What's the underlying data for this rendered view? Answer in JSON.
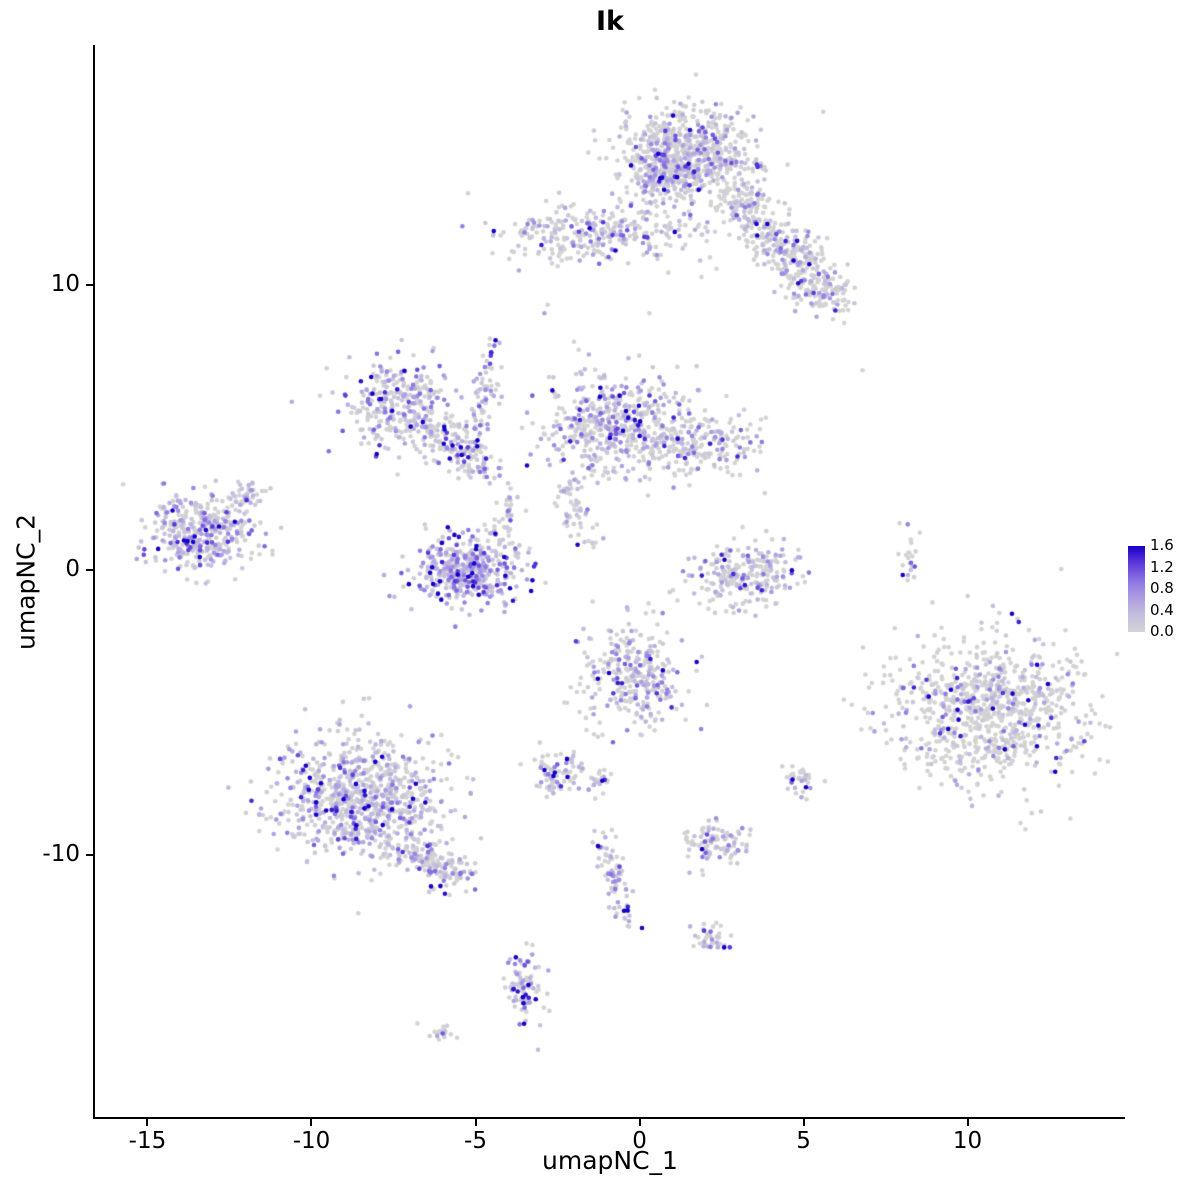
{
  "chart_data": {
    "type": "scatter",
    "title": "Ik",
    "xlabel": "umapNC_1",
    "ylabel": "umapNC_2",
    "x_ticks": [
      -15,
      -10,
      -5,
      0,
      5,
      10
    ],
    "y_ticks": [
      -10,
      0,
      10
    ],
    "xlim": [
      -16.6,
      14.8
    ],
    "ylim": [
      -19.2,
      18.4
    ],
    "grid": false,
    "legend": {
      "position": "right",
      "ticks": [
        "1.6",
        "1.2",
        "0.8",
        "0.4",
        "0.0"
      ],
      "vmin": 0.0,
      "vmax": 1.6
    },
    "colorscale": {
      "low": "#d3d3d3",
      "high": "#1400c8",
      "stops": [
        {
          "t": 0.0,
          "c": "#d3d3d3"
        },
        {
          "t": 0.2,
          "c": "#c4bede"
        },
        {
          "t": 0.4,
          "c": "#ab9de2"
        },
        {
          "t": 0.55,
          "c": "#9480e2"
        },
        {
          "t": 0.7,
          "c": "#7557de"
        },
        {
          "t": 0.85,
          "c": "#4e2bd8"
        },
        {
          "t": 1.0,
          "c": "#1400c8"
        }
      ]
    },
    "point_radius": 2.3,
    "seed": 42,
    "clusters": [
      {
        "name": "top-main",
        "cx": 1.5,
        "cy": 14.6,
        "sx": 1.05,
        "sy": 0.8,
        "n": 650,
        "f": 0.5,
        "m": 0.4
      },
      {
        "name": "top-left-lobe",
        "cx": 0.8,
        "cy": 13.9,
        "sx": 0.5,
        "sy": 0.55,
        "n": 150,
        "f": 0.5,
        "m": 0.4
      },
      {
        "name": "top-arm-upper",
        "cx": 2.8,
        "cy": 13.2,
        "ex": 4.0,
        "ey": 11.8,
        "sx": 0.45,
        "sy": 0.4,
        "n": 160,
        "f": 0.4,
        "m": 0.4
      },
      {
        "name": "top-arm-lower",
        "cx": 4.2,
        "cy": 11.6,
        "ex": 5.2,
        "ey": 10.1,
        "sx": 0.5,
        "sy": 0.45,
        "n": 200,
        "f": 0.45,
        "m": 0.45
      },
      {
        "name": "top-arm-tip",
        "cx": 5.7,
        "cy": 9.7,
        "sx": 0.45,
        "sy": 0.35,
        "n": 90,
        "f": 0.45,
        "m": 0.4
      },
      {
        "name": "upper-left-band",
        "cx": -1.6,
        "cy": 11.8,
        "sx": 1.25,
        "sy": 0.5,
        "n": 270,
        "f": 0.55,
        "m": 0.45
      },
      {
        "name": "upper-sparse",
        "cx": 0.9,
        "cy": 11.9,
        "sx": 0.9,
        "sy": 0.7,
        "n": 50,
        "f": 0.4,
        "m": 0.35
      },
      {
        "name": "wing-left",
        "cx": -7.2,
        "cy": 5.7,
        "sx": 0.95,
        "sy": 0.75,
        "n": 330,
        "f": 0.65,
        "m": 0.5
      },
      {
        "name": "wing-arm",
        "cx": -6.2,
        "cy": 4.9,
        "ex": -4.7,
        "ey": 3.5,
        "sx": 0.35,
        "sy": 0.3,
        "n": 130,
        "f": 0.6,
        "m": 0.5
      },
      {
        "name": "trail-upper",
        "cx": -4.5,
        "cy": 7.8,
        "ex": -5.0,
        "ey": 4.0,
        "sx": 0.18,
        "sy": 0.3,
        "n": 70,
        "f": 0.6,
        "m": 0.5
      },
      {
        "name": "center-main",
        "cx": -0.6,
        "cy": 5.1,
        "sx": 1.25,
        "sy": 0.85,
        "n": 520,
        "f": 0.6,
        "m": 0.5
      },
      {
        "name": "center-right-lobe",
        "cx": 1.9,
        "cy": 4.3,
        "sx": 0.8,
        "sy": 0.55,
        "n": 160,
        "f": 0.5,
        "m": 0.5
      },
      {
        "name": "center-trail-down",
        "cx": -2.3,
        "cy": 3.2,
        "ex": -1.6,
        "ey": 0.9,
        "sx": 0.25,
        "sy": 0.3,
        "n": 60,
        "f": 0.6,
        "m": 0.45
      },
      {
        "name": "left-cluster",
        "cx": -13.3,
        "cy": 1.3,
        "sx": 0.85,
        "sy": 0.7,
        "n": 400,
        "f": 0.7,
        "m": 0.5
      },
      {
        "name": "left-cluster-arm",
        "cx": -12.4,
        "cy": 2.2,
        "ex": -11.6,
        "ey": 2.9,
        "sx": 0.2,
        "sy": 0.2,
        "n": 40,
        "f": 0.6,
        "m": 0.45
      },
      {
        "name": "cup-cluster",
        "cx": -5.2,
        "cy": 0.0,
        "sx": 0.8,
        "sy": 0.58,
        "n": 430,
        "f": 0.85,
        "m": 0.62
      },
      {
        "name": "cup-tail",
        "cx": -4.4,
        "cy": 1.3,
        "ex": -3.8,
        "ey": 2.5,
        "sx": 0.2,
        "sy": 0.25,
        "n": 40,
        "f": 0.7,
        "m": 0.5
      },
      {
        "name": "mid-right",
        "cx": 3.2,
        "cy": -0.2,
        "sx": 0.8,
        "sy": 0.58,
        "n": 250,
        "f": 0.55,
        "m": 0.5
      },
      {
        "name": "tiny-column",
        "cx": 8.2,
        "cy": 0.3,
        "sx": 0.15,
        "sy": 0.55,
        "n": 22,
        "f": 0.5,
        "m": 0.5
      },
      {
        "name": "right-big",
        "cx": 10.6,
        "cy": -4.9,
        "sx": 1.55,
        "sy": 1.25,
        "n": 850,
        "f": 0.32,
        "m": 0.5
      },
      {
        "name": "center-low",
        "cx": -0.2,
        "cy": -3.7,
        "sx": 0.8,
        "sy": 0.95,
        "n": 300,
        "f": 0.6,
        "m": 0.5
      },
      {
        "name": "small-left-low",
        "cx": -2.5,
        "cy": -7.1,
        "sx": 0.4,
        "sy": 0.35,
        "n": 80,
        "f": 0.6,
        "m": 0.5
      },
      {
        "name": "dot-left-low",
        "cx": -1.2,
        "cy": -7.4,
        "sx": 0.2,
        "sy": 0.18,
        "n": 25,
        "f": 0.5,
        "m": 0.5
      },
      {
        "name": "bottomleft-big",
        "cx": -8.6,
        "cy": -8.0,
        "sx": 1.25,
        "sy": 1.05,
        "n": 850,
        "f": 0.65,
        "m": 0.45
      },
      {
        "name": "bottomleft-arm",
        "cx": -7.0,
        "cy": -9.8,
        "ex": -5.4,
        "ey": -10.9,
        "sx": 0.4,
        "sy": 0.3,
        "n": 160,
        "f": 0.6,
        "m": 0.45
      },
      {
        "name": "small-bottom-mid",
        "cx": 2.3,
        "cy": -9.6,
        "sx": 0.5,
        "sy": 0.35,
        "n": 100,
        "f": 0.55,
        "m": 0.5
      },
      {
        "name": "tiny-blob-right",
        "cx": 4.9,
        "cy": -7.4,
        "sx": 0.25,
        "sy": 0.28,
        "n": 35,
        "f": 0.5,
        "m": 0.5
      },
      {
        "name": "chain-down",
        "cx": -1.1,
        "cy": -9.3,
        "ex": -0.4,
        "ey": -12.4,
        "sx": 0.2,
        "sy": 0.25,
        "n": 85,
        "f": 0.6,
        "m": 0.5
      },
      {
        "name": "small-bottom",
        "cx": 2.2,
        "cy": -12.9,
        "sx": 0.3,
        "sy": 0.25,
        "n": 40,
        "f": 0.6,
        "m": 0.6
      },
      {
        "name": "curve-bottom",
        "cx": -3.5,
        "cy": -14.7,
        "sx": 0.3,
        "sy": 0.72,
        "n": 85,
        "f": 0.7,
        "m": 0.55
      },
      {
        "name": "tiny-bottomleft",
        "cx": -6.1,
        "cy": -16.2,
        "sx": 0.3,
        "sy": 0.15,
        "n": 18,
        "f": 0.4,
        "m": 0.4
      }
    ],
    "singles": [
      {
        "x": -2.9,
        "y": 9.0,
        "v": 0.6
      },
      {
        "x": -2.8,
        "y": 9.3,
        "v": 0.0
      },
      {
        "x": 6.8,
        "y": 7.0,
        "v": 0.0
      },
      {
        "x": -10.6,
        "y": 5.9,
        "v": 0.5
      },
      {
        "x": -2.0,
        "y": 8.0,
        "v": 0.0
      },
      {
        "x": 0.3,
        "y": 9.0,
        "v": 0.0
      }
    ]
  }
}
